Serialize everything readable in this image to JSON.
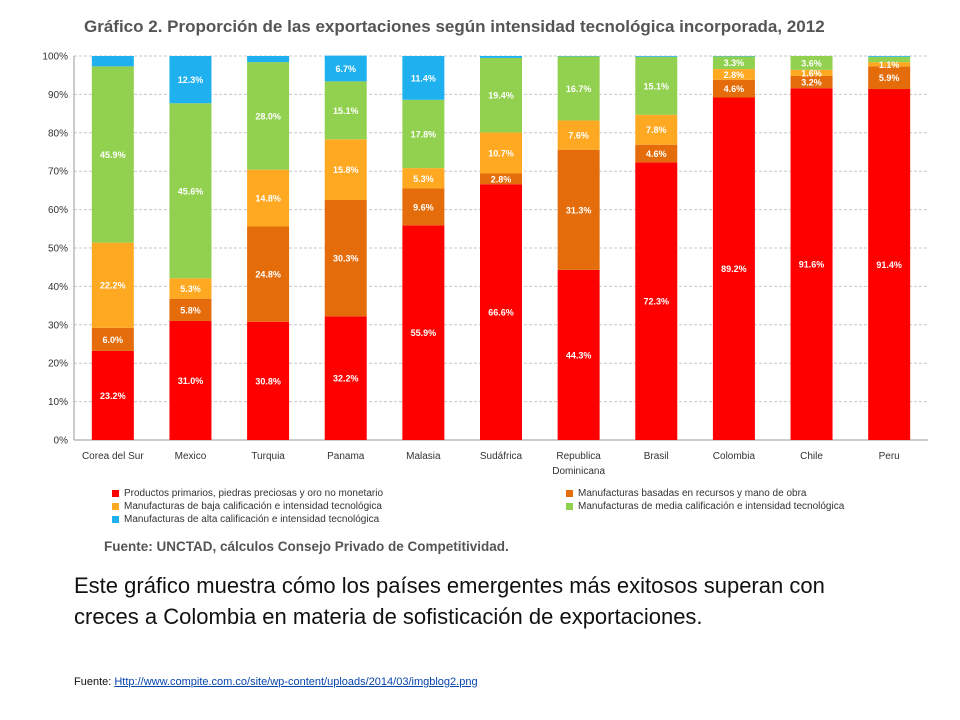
{
  "chart_data": {
    "type": "bar",
    "stacked": true,
    "title": "Gráfico 2. Proporción de las exportaciones según intensidad tecnológica incorporada, 2012",
    "xlabel": "",
    "ylabel": "",
    "ylim": [
      0,
      100
    ],
    "yticks": [
      "0%",
      "10%",
      "20%",
      "30%",
      "40%",
      "50%",
      "60%",
      "70%",
      "80%",
      "90%",
      "100%"
    ],
    "grid": true,
    "legend_position": "bottom",
    "categories": [
      "Corea del Sur",
      "Mexico",
      "Turquia",
      "Panama",
      "Malasia",
      "Sudáfrica",
      "Republica Dominicana",
      "Brasil",
      "Colombia",
      "Chile",
      "Peru"
    ],
    "series": [
      {
        "name": "Productos primarios, piedras preciosas y oro no monetario",
        "color": "#ff0000",
        "values": [
          23.2,
          31.0,
          30.8,
          32.2,
          55.9,
          66.6,
          44.3,
          72.3,
          89.2,
          91.6,
          91.4
        ],
        "labels": [
          "23.2%",
          "31.0%",
          "30.8%",
          "32.2%",
          "55.9%",
          "66.6%",
          "44.3%",
          "72.3%",
          "89.2%",
          "91.6%",
          "91.4%"
        ]
      },
      {
        "name": "Manufacturas basadas en recursos y mano de obra",
        "color": "#e46c0a",
        "values": [
          6.0,
          5.8,
          24.8,
          30.3,
          9.6,
          2.8,
          31.3,
          4.6,
          4.6,
          3.2,
          5.9
        ],
        "labels": [
          "6.0%",
          "5.8%",
          "24.8%",
          "30.3%",
          "9.6%",
          "2.8%",
          "31.3%",
          "4.6%",
          "4.6%",
          "3.2%",
          "5.9%"
        ]
      },
      {
        "name": "Manufacturas de baja calificación e intensidad tecnológica",
        "color": "#ffa922",
        "values": [
          22.2,
          5.3,
          14.8,
          15.8,
          5.3,
          10.7,
          7.6,
          7.8,
          2.8,
          1.6,
          1.1
        ],
        "labels": [
          "22.2%",
          "5.3%",
          "14.8%",
          "15.8%",
          "5.3%",
          "10.7%",
          "7.6%",
          "7.8%",
          "2.8%",
          "1.6%",
          "1.1%"
        ]
      },
      {
        "name": "Manufacturas de media calificación e intensidad tecnológica",
        "color": "#92d050",
        "values": [
          45.9,
          45.6,
          28.0,
          15.1,
          17.8,
          19.4,
          16.7,
          15.1,
          3.3,
          3.6,
          1.4
        ],
        "labels": [
          "45.9%",
          "45.6%",
          "28.0%",
          "15.1%",
          "17.8%",
          "19.4%",
          "16.7%",
          "15.1%",
          "3.3%",
          "3.6%",
          ""
        ]
      },
      {
        "name": "Manufacturas de alta calificación e intensidad tecnológica",
        "color": "#1fb1ef",
        "values": [
          2.7,
          12.3,
          1.6,
          6.7,
          11.4,
          0.5,
          0.1,
          0.2,
          0.1,
          0.0,
          0.2
        ],
        "labels": [
          "",
          "12.3%",
          "",
          "6.7%",
          "11.4%",
          "",
          "",
          "",
          "",
          "",
          ""
        ]
      }
    ]
  },
  "legend_order": [
    0,
    1,
    2,
    3,
    4
  ],
  "source_note": "Fuente: UNCTAD, cálculos Consejo Privado de Competitividad.",
  "caption": "Este gráfico muestra cómo los países emergentes más exitosos superan con  creces a Colombia en materia de sofisticación de exportaciones.",
  "footer": {
    "label": "Fuente: ",
    "link_text": "Http://www.compite.com.co/site/wp-content/uploads/2014/03/imgblog2.png"
  }
}
